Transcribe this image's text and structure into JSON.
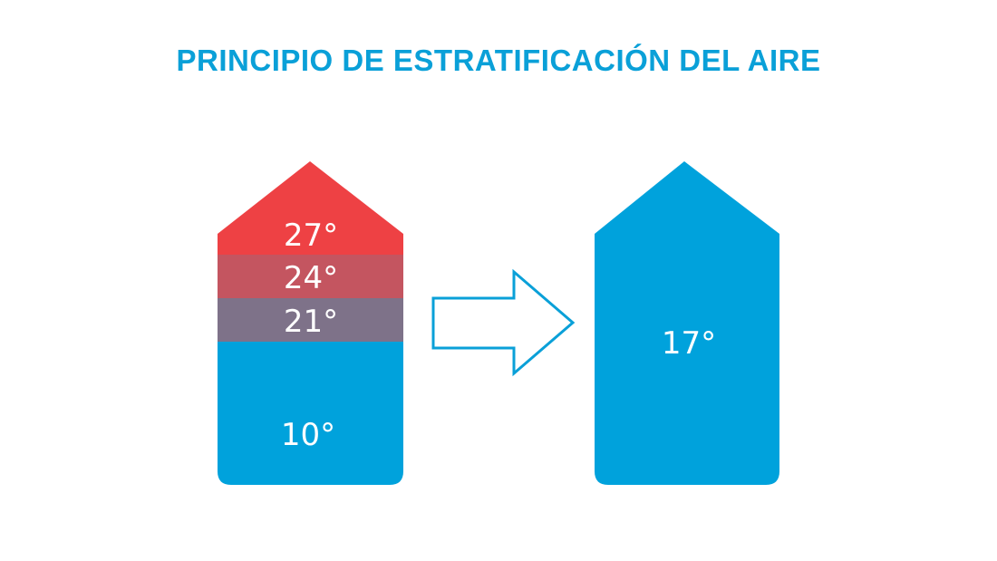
{
  "title": "PRINCIPIO DE ESTRATIFICACIÓN DEL AIRE",
  "before": {
    "layers": [
      {
        "label": "27°",
        "color": "#ee4144"
      },
      {
        "label": "24°",
        "color": "#c45560"
      },
      {
        "label": "21°",
        "color": "#7e7289"
      },
      {
        "label": "10°",
        "color": "#00a2dc"
      }
    ]
  },
  "arrow": {
    "icon": "right-arrow-outline-icon",
    "color": "#0aa0d8"
  },
  "after": {
    "label": "17°",
    "color": "#00a2dc"
  }
}
